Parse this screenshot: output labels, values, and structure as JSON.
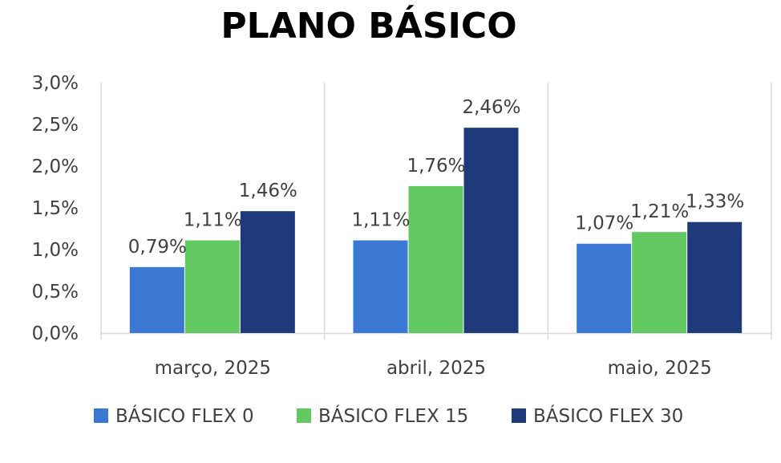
{
  "chart_data": {
    "type": "bar",
    "title": "PLANO BÁSICO",
    "categories": [
      "março, 2025",
      "abril, 2025",
      "maio, 2025"
    ],
    "series": [
      {
        "name": "BÁSICO FLEX 0",
        "color": "#3A78D4",
        "values": [
          0.79,
          1.11,
          1.07
        ],
        "labels": [
          "0,79%",
          "1,11%",
          "1,07%"
        ]
      },
      {
        "name": "BÁSICO FLEX 15",
        "color": "#62C962",
        "values": [
          1.11,
          1.76,
          1.21
        ],
        "labels": [
          "1,11%",
          "1,76%",
          "1,21%"
        ]
      },
      {
        "name": "BÁSICO FLEX 30",
        "color": "#1F3A7A",
        "values": [
          1.46,
          2.46,
          1.33
        ],
        "labels": [
          "1,46%",
          "2,46%",
          "1,33%"
        ]
      }
    ],
    "yticks": [
      "0,0%",
      "0,5%",
      "1,0%",
      "1,5%",
      "2,0%",
      "2,5%",
      "3,0%"
    ],
    "ylim": [
      0,
      3.0
    ],
    "xlabel": "",
    "ylabel": "",
    "grid": "vertical separators between categories",
    "legend": "bottom"
  }
}
